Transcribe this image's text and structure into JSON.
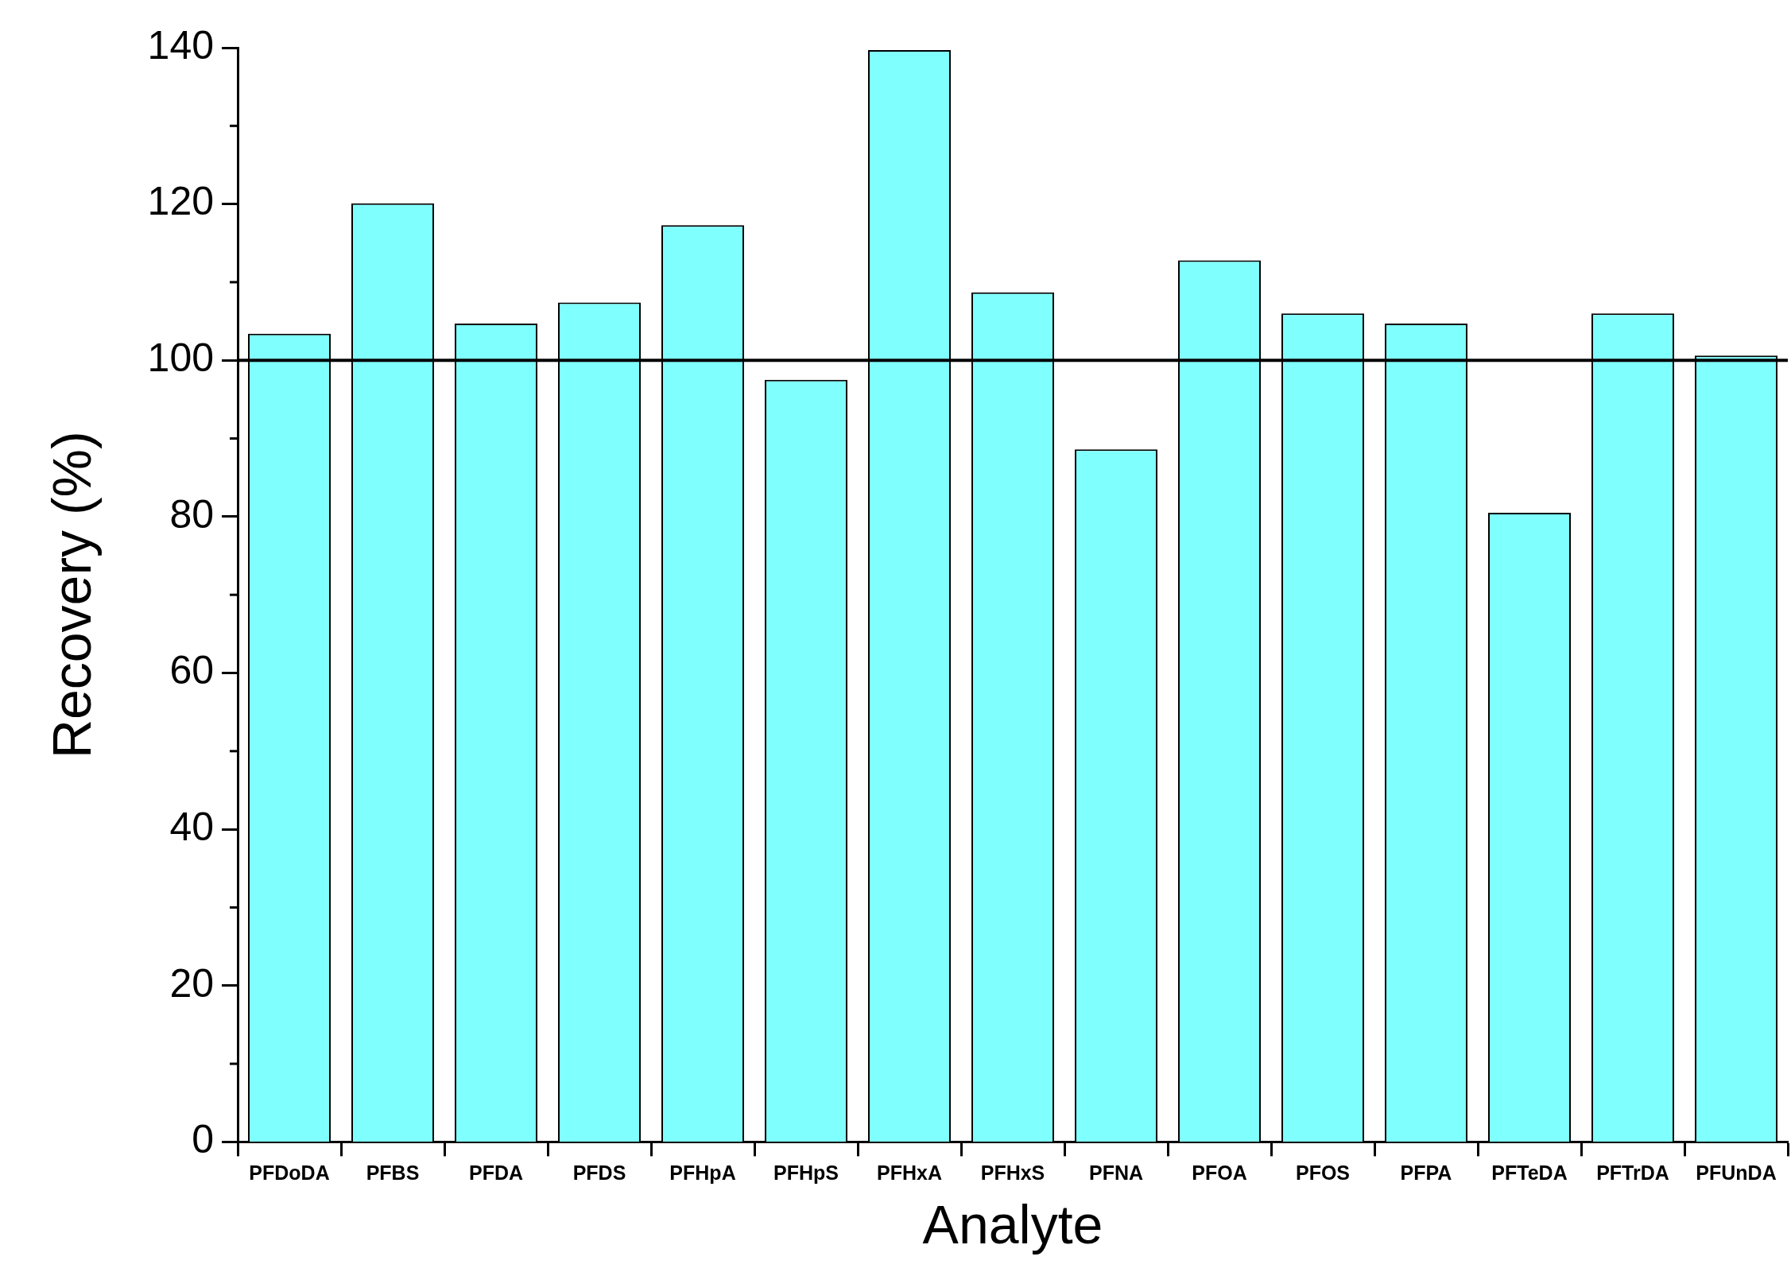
{
  "chart_data": {
    "type": "bar",
    "xlabel": "Analyte",
    "ylabel": "Recovery (%)",
    "categories": [
      "PFDoDA",
      "PFBS",
      "PFDA",
      "PFDS",
      "PFHpA",
      "PFHpS",
      "PFHxA",
      "PFHxS",
      "PFNA",
      "PFOA",
      "PFOS",
      "PFPA",
      "PFTeDA",
      "PFTrDA",
      "PFUnDA"
    ],
    "values": [
      103.4,
      120.1,
      104.7,
      107.4,
      117.3,
      97.5,
      139.7,
      108.7,
      88.6,
      112.8,
      106.0,
      104.7,
      80.5,
      106.0,
      100.6
    ],
    "color": "#80ffff",
    "ylim": [
      0,
      140
    ],
    "yticks": [
      0,
      20,
      40,
      60,
      80,
      100,
      120,
      140
    ],
    "ref_lines": [
      {
        "axis": "y",
        "value": 100,
        "color": "#000000"
      }
    ],
    "grid": false,
    "legend": false
  }
}
